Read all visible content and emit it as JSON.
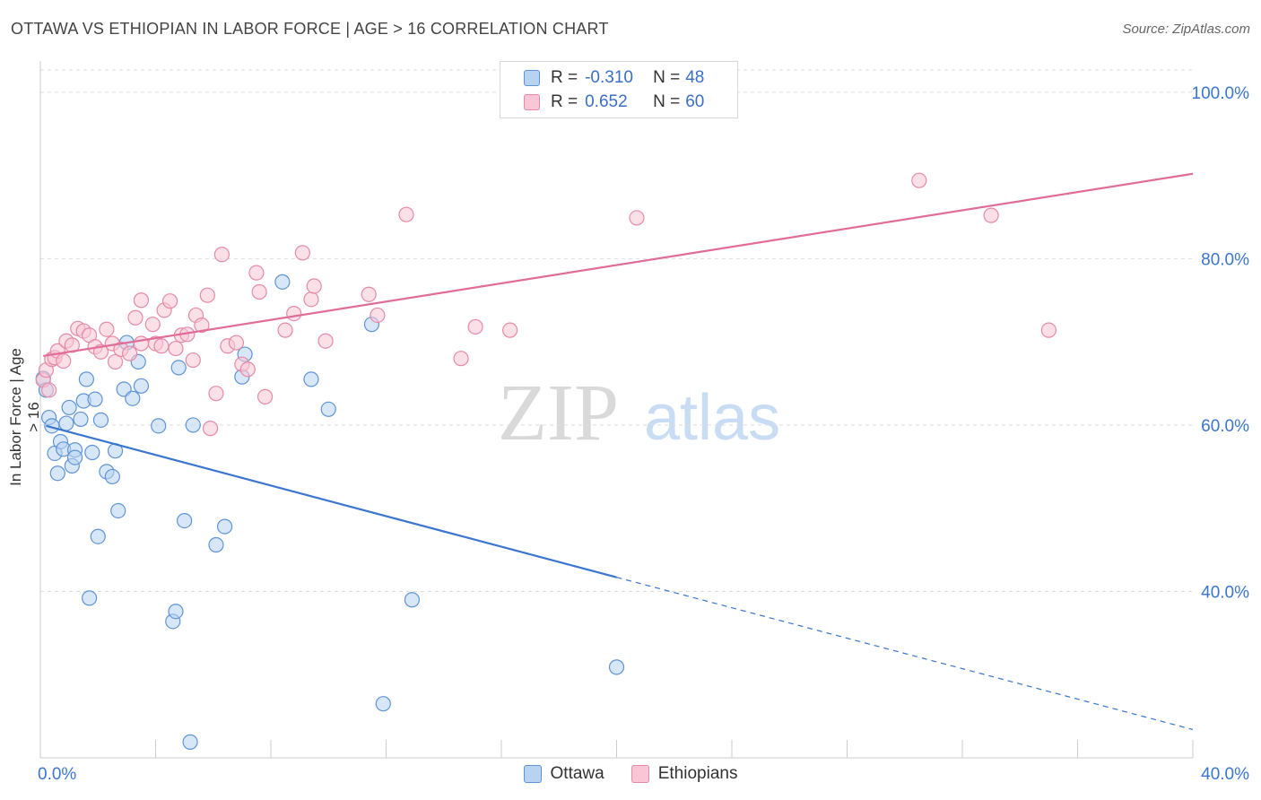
{
  "title": "OTTAWA VS ETHIOPIAN IN LABOR FORCE | AGE > 16 CORRELATION CHART",
  "source": "Source: ZipAtlas.com",
  "watermark": {
    "zip": "ZIP",
    "atlas": "atlas"
  },
  "legend": {
    "r_label": "R =",
    "n_label": "N =",
    "ottawa": {
      "r": "-0.310",
      "n": "48"
    },
    "ethiopians": {
      "r": "0.652",
      "n": "60"
    }
  },
  "bottom_legend": [
    "Ottawa",
    "Ethiopians"
  ],
  "colors": {
    "ottawa_fill": "#b8d3f2",
    "ottawa_stroke": "#5e94d6",
    "ottawa_line": "#3a75d0",
    "ethiopians_fill": "#f9c6d6",
    "ethiopians_stroke": "#e68aa8",
    "ethiopians_line": "#e06d98",
    "tick_label": "#3a75d0",
    "grid": "#dddddd"
  },
  "chart_data": {
    "type": "scatter",
    "title": "OTTAWA VS ETHIOPIAN IN LABOR FORCE | AGE > 16 CORRELATION CHART",
    "xlabel": "",
    "ylabel": "In Labor Force | Age > 16",
    "xlim": [
      0,
      40
    ],
    "ylim": [
      20,
      103
    ],
    "x_tick_labels": [
      "0.0%",
      "40.0%"
    ],
    "y_ticks": [
      40,
      60,
      80,
      100
    ],
    "y_tick_labels": [
      "40.0%",
      "60.0%",
      "80.0%",
      "100.0%"
    ],
    "grid": "horizontal dashed",
    "legend_position": "top-center",
    "series": [
      {
        "name": "Ottawa",
        "r": -0.31,
        "n": 48,
        "trend": {
          "x": [
            0.2,
            20.0
          ],
          "y": [
            59.9,
            41.7
          ],
          "dashed_to": [
            40.0,
            23.4
          ]
        },
        "points": [
          [
            0.1,
            65.6
          ],
          [
            0.2,
            64.2
          ],
          [
            0.3,
            60.9
          ],
          [
            0.4,
            59.9
          ],
          [
            0.5,
            56.6
          ],
          [
            0.6,
            54.2
          ],
          [
            0.7,
            58.0
          ],
          [
            0.8,
            57.1
          ],
          [
            0.9,
            60.2
          ],
          [
            1.0,
            62.1
          ],
          [
            1.1,
            55.1
          ],
          [
            1.2,
            57.0
          ],
          [
            1.2,
            56.1
          ],
          [
            1.4,
            60.7
          ],
          [
            1.5,
            62.9
          ],
          [
            1.6,
            65.5
          ],
          [
            1.7,
            39.2
          ],
          [
            1.8,
            56.7
          ],
          [
            1.9,
            63.1
          ],
          [
            2.0,
            46.6
          ],
          [
            2.1,
            60.6
          ],
          [
            2.3,
            54.4
          ],
          [
            2.5,
            53.8
          ],
          [
            2.6,
            56.9
          ],
          [
            2.7,
            49.7
          ],
          [
            2.9,
            64.3
          ],
          [
            3.0,
            69.9
          ],
          [
            3.2,
            63.2
          ],
          [
            3.4,
            67.6
          ],
          [
            3.5,
            64.7
          ],
          [
            4.1,
            59.9
          ],
          [
            4.6,
            36.4
          ],
          [
            4.7,
            37.6
          ],
          [
            4.8,
            66.9
          ],
          [
            5.0,
            48.5
          ],
          [
            5.2,
            21.9
          ],
          [
            5.3,
            60.0
          ],
          [
            6.1,
            45.6
          ],
          [
            6.4,
            47.8
          ],
          [
            7.0,
            65.8
          ],
          [
            7.1,
            68.5
          ],
          [
            8.4,
            77.2
          ],
          [
            9.4,
            65.5
          ],
          [
            10.0,
            61.9
          ],
          [
            11.5,
            72.1
          ],
          [
            11.9,
            26.5
          ],
          [
            12.9,
            39.0
          ],
          [
            20.0,
            30.9
          ]
        ]
      },
      {
        "name": "Ethiopians",
        "r": 0.652,
        "n": 60,
        "trend": {
          "x": [
            0.1,
            40.0
          ],
          "y": [
            68.3,
            90.2
          ]
        },
        "points": [
          [
            0.1,
            65.4
          ],
          [
            0.2,
            66.6
          ],
          [
            0.3,
            64.2
          ],
          [
            0.4,
            67.9
          ],
          [
            0.5,
            68.1
          ],
          [
            0.6,
            68.9
          ],
          [
            0.8,
            67.7
          ],
          [
            0.9,
            70.1
          ],
          [
            1.1,
            69.6
          ],
          [
            1.3,
            71.6
          ],
          [
            1.5,
            71.3
          ],
          [
            1.7,
            70.8
          ],
          [
            1.9,
            69.4
          ],
          [
            2.1,
            68.8
          ],
          [
            2.3,
            71.5
          ],
          [
            2.5,
            69.8
          ],
          [
            2.6,
            67.6
          ],
          [
            2.8,
            69.1
          ],
          [
            3.1,
            68.6
          ],
          [
            3.3,
            72.9
          ],
          [
            3.5,
            69.8
          ],
          [
            3.5,
            75.0
          ],
          [
            3.9,
            72.1
          ],
          [
            4.0,
            69.8
          ],
          [
            4.2,
            69.5
          ],
          [
            4.3,
            73.8
          ],
          [
            4.5,
            74.9
          ],
          [
            4.7,
            69.2
          ],
          [
            4.9,
            70.8
          ],
          [
            5.1,
            70.9
          ],
          [
            5.3,
            67.8
          ],
          [
            5.4,
            73.2
          ],
          [
            5.6,
            72.0
          ],
          [
            5.8,
            75.6
          ],
          [
            5.9,
            59.6
          ],
          [
            6.1,
            63.8
          ],
          [
            6.3,
            80.5
          ],
          [
            6.5,
            69.5
          ],
          [
            6.8,
            69.9
          ],
          [
            7.0,
            67.3
          ],
          [
            7.2,
            66.7
          ],
          [
            7.5,
            78.3
          ],
          [
            7.6,
            76.0
          ],
          [
            7.8,
            63.4
          ],
          [
            8.5,
            71.4
          ],
          [
            8.8,
            73.4
          ],
          [
            9.1,
            80.7
          ],
          [
            9.4,
            75.1
          ],
          [
            9.5,
            76.7
          ],
          [
            9.9,
            70.1
          ],
          [
            11.4,
            75.7
          ],
          [
            11.7,
            73.2
          ],
          [
            12.7,
            85.3
          ],
          [
            14.6,
            68.0
          ],
          [
            15.1,
            71.8
          ],
          [
            16.3,
            71.4
          ],
          [
            20.7,
            84.9
          ],
          [
            30.5,
            89.4
          ],
          [
            33.0,
            85.2
          ],
          [
            35.0,
            71.4
          ]
        ]
      }
    ]
  }
}
